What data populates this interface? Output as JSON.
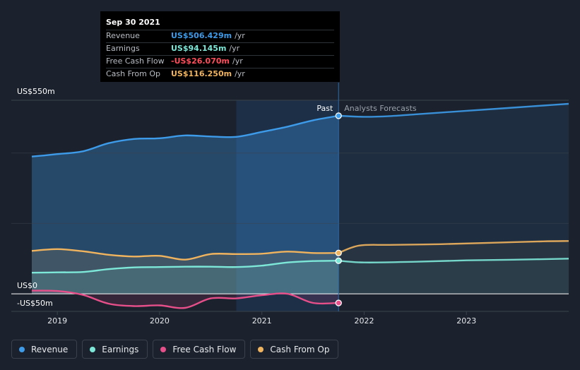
{
  "tooltip": {
    "date": "Sep 30 2021",
    "rows": [
      {
        "label": "Revenue",
        "value": "US$506.429m",
        "unit": "/yr",
        "color": "#3d9be9"
      },
      {
        "label": "Earnings",
        "value": "US$94.145m",
        "unit": "/yr",
        "color": "#7de8d8"
      },
      {
        "label": "Free Cash Flow",
        "value": "-US$26.070m",
        "unit": "/yr",
        "color": "#ff4d5b"
      },
      {
        "label": "Cash From Op",
        "value": "US$116.250m",
        "unit": "/yr",
        "color": "#f0b35e"
      }
    ]
  },
  "chart_data": {
    "type": "line",
    "y_tick_labels": {
      "top": "US$550m",
      "zero": "US$0",
      "bottom": "-US$50m"
    },
    "ylim": [
      -50,
      550
    ],
    "xlim": [
      2018.55,
      2024.0
    ],
    "x_tick_labels": [
      "2019",
      "2020",
      "2021",
      "2022",
      "2023"
    ],
    "x_ticks": [
      2019,
      2020,
      2021,
      2022,
      2023
    ],
    "past_label": "Past",
    "forecast_label": "Analysts Forecasts",
    "past_end": 2021.75,
    "highlight_start": 2020.75,
    "series": [
      {
        "name": "Revenue",
        "color": "#3d9be9",
        "points": [
          [
            2018.75,
            390
          ],
          [
            2019.0,
            397
          ],
          [
            2019.25,
            405
          ],
          [
            2019.5,
            428
          ],
          [
            2019.75,
            440
          ],
          [
            2020.0,
            442
          ],
          [
            2020.25,
            450
          ],
          [
            2020.5,
            447
          ],
          [
            2020.75,
            446
          ],
          [
            2021.0,
            460
          ],
          [
            2021.25,
            475
          ],
          [
            2021.5,
            493
          ],
          [
            2021.75,
            506
          ]
        ],
        "forecast": [
          [
            2021.75,
            506
          ],
          [
            2022.0,
            503
          ],
          [
            2022.25,
            505
          ],
          [
            2022.5,
            510
          ],
          [
            2022.75,
            515
          ],
          [
            2023.0,
            520
          ],
          [
            2023.25,
            525
          ],
          [
            2023.5,
            530
          ],
          [
            2023.75,
            535
          ],
          [
            2024.0,
            540
          ]
        ]
      },
      {
        "name": "Cash From Op",
        "color": "#f0b35e",
        "points": [
          [
            2018.75,
            122
          ],
          [
            2019.0,
            127
          ],
          [
            2019.25,
            121
          ],
          [
            2019.5,
            111
          ],
          [
            2019.75,
            106
          ],
          [
            2020.0,
            108
          ],
          [
            2020.25,
            97
          ],
          [
            2020.5,
            113
          ],
          [
            2020.75,
            113
          ],
          [
            2021.0,
            114
          ],
          [
            2021.25,
            120
          ],
          [
            2021.5,
            116
          ],
          [
            2021.75,
            116
          ]
        ],
        "forecast": [
          [
            2021.75,
            116
          ],
          [
            2021.95,
            137
          ],
          [
            2022.25,
            139
          ],
          [
            2022.75,
            141
          ],
          [
            2023.25,
            145
          ],
          [
            2023.75,
            149
          ],
          [
            2024.0,
            150
          ]
        ]
      },
      {
        "name": "Earnings",
        "color": "#7de8d8",
        "points": [
          [
            2018.75,
            60
          ],
          [
            2019.0,
            61
          ],
          [
            2019.25,
            62
          ],
          [
            2019.5,
            70
          ],
          [
            2019.75,
            75
          ],
          [
            2020.0,
            76
          ],
          [
            2020.25,
            77
          ],
          [
            2020.5,
            77
          ],
          [
            2020.75,
            76
          ],
          [
            2021.0,
            80
          ],
          [
            2021.25,
            89
          ],
          [
            2021.5,
            93
          ],
          [
            2021.75,
            94
          ]
        ],
        "forecast": [
          [
            2021.75,
            94
          ],
          [
            2022.0,
            89
          ],
          [
            2022.5,
            91
          ],
          [
            2023.0,
            95
          ],
          [
            2023.5,
            97
          ],
          [
            2024.0,
            100
          ]
        ]
      },
      {
        "name": "Free Cash Flow",
        "color": "#e64f8a",
        "points": [
          [
            2018.75,
            9
          ],
          [
            2019.0,
            8
          ],
          [
            2019.25,
            -3
          ],
          [
            2019.5,
            -28
          ],
          [
            2019.75,
            -35
          ],
          [
            2020.0,
            -33
          ],
          [
            2020.25,
            -40
          ],
          [
            2020.5,
            -13
          ],
          [
            2020.75,
            -13
          ],
          [
            2021.0,
            -4
          ],
          [
            2021.25,
            0
          ],
          [
            2021.5,
            -26
          ],
          [
            2021.75,
            -26
          ]
        ],
        "forecast": []
      }
    ]
  },
  "legend": [
    {
      "label": "Revenue",
      "color": "#3d9be9"
    },
    {
      "label": "Earnings",
      "color": "#7de8d8"
    },
    {
      "label": "Free Cash Flow",
      "color": "#e64f8a"
    },
    {
      "label": "Cash From Op",
      "color": "#f0b35e"
    }
  ]
}
